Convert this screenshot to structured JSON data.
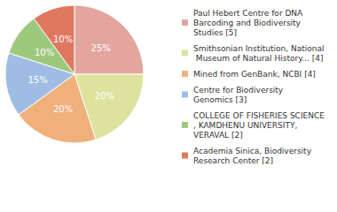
{
  "chart_data": {
    "type": "pie",
    "categories": [
      "Paul Hebert Centre for DNA Barcoding and Biodiversity Studies [5]",
      "Smithsonian Institution, National Museum of Natural History... [4]",
      "Mined from GenBank, NCBI [4]",
      "Centre for Biodiversity Genomics [3]",
      "COLLEGE OF FISHERIES SCIENCE, KAMDHENU UNIVERSITY, VERAVAL [2]",
      "Academia Sinica, Biodiversity Research Center [2]"
    ],
    "values": [
      25,
      20,
      20,
      15,
      10,
      10
    ],
    "value_labels": [
      "25%",
      "20%",
      "20%",
      "15%",
      "10%",
      "10%"
    ],
    "colors": [
      "#e2a69e",
      "#dde39c",
      "#f0b07c",
      "#9fbde3",
      "#9ec97d",
      "#e0785f"
    ],
    "data_labels": true,
    "legend": "right"
  }
}
